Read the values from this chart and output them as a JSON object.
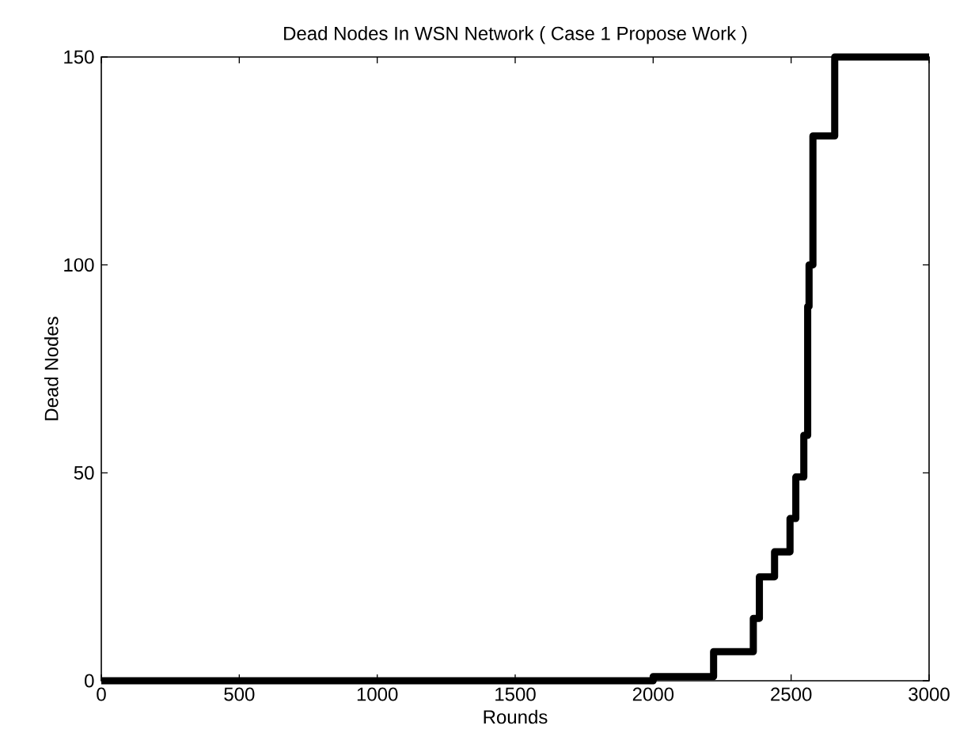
{
  "chart_data": {
    "type": "step",
    "title": "Dead Nodes In WSN Network ( Case 1 Propose Work )",
    "xlabel": "Rounds",
    "ylabel": "Dead Nodes",
    "x": [
      0,
      2000,
      2219,
      2363,
      2385,
      2440,
      2496,
      2517,
      2546,
      2560,
      2565,
      2579,
      2658,
      3000
    ],
    "series": [
      {
        "color": "#000000",
        "values": [
          0,
          1,
          7,
          15,
          25,
          31,
          39,
          49,
          59,
          90,
          100,
          131,
          150,
          150
        ]
      }
    ],
    "xlim": [
      0,
      3000
    ],
    "ylim": [
      0,
      150
    ],
    "xticks": [
      0,
      500,
      1000,
      1500,
      2000,
      2500,
      3000
    ],
    "yticks": [
      0,
      50,
      100,
      150
    ]
  }
}
